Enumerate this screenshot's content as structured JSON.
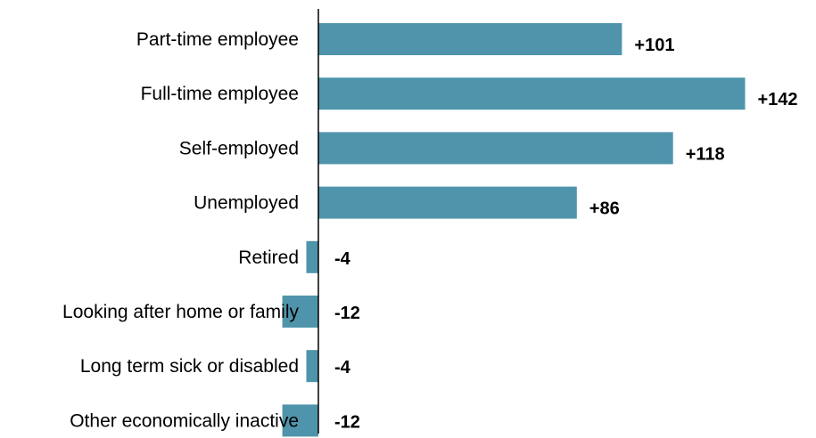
{
  "chart_data": {
    "type": "bar",
    "orientation": "horizontal",
    "categories": [
      "Part-time employee",
      "Full-time employee",
      "Self-employed",
      "Unemployed",
      "Retired",
      "Looking after home or family",
      "Long term sick or disabled",
      "Other economically inactive"
    ],
    "values": [
      101,
      142,
      118,
      86,
      -4,
      -12,
      -4,
      -12
    ],
    "data_labels": [
      "+101",
      "+142",
      "+118",
      "+86",
      "-4",
      "-12",
      "-4",
      "-12"
    ],
    "title": "",
    "xlabel": "",
    "ylabel": "",
    "xlim": [
      -12,
      142
    ],
    "grid": false,
    "legend": "none",
    "bar_color": "#4f94ab",
    "axis_color": "#000000"
  }
}
